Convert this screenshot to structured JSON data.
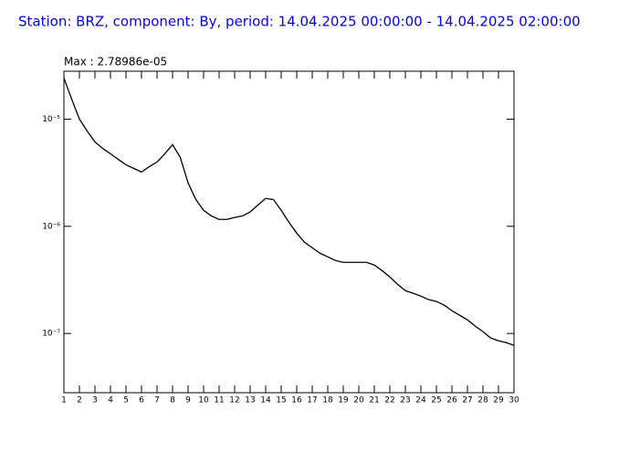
{
  "chart_data": {
    "type": "line",
    "title": "Station: BRZ, component: By, period: 14.04.2025 00:00:00 - 14.04.2025 02:00:00",
    "annotation": "Max : 2.78986e-05",
    "x": [
      1,
      1.5,
      2,
      2.5,
      3,
      3.5,
      4,
      4.5,
      5,
      5.5,
      6,
      6.5,
      7,
      7.5,
      8,
      8.5,
      9,
      9.5,
      10,
      10.5,
      11,
      11.5,
      12,
      12.5,
      13,
      13.5,
      14,
      14.5,
      15,
      15.5,
      16,
      16.5,
      17,
      17.5,
      18,
      18.5,
      19,
      19.5,
      20,
      20.5,
      21,
      21.5,
      22,
      22.5,
      23,
      23.5,
      24,
      24.5,
      25,
      25.5,
      26,
      26.5,
      27,
      27.5,
      28,
      28.5,
      29,
      29.5,
      30
    ],
    "series": [
      {
        "color": "#000000",
        "values": [
          2.42e-05,
          1.54e-05,
          1e-05,
          7.75e-06,
          6.13e-06,
          5.34e-06,
          4.75e-06,
          4.22e-06,
          3.75e-06,
          3.47e-06,
          3.21e-06,
          3.61e-06,
          3.98e-06,
          4.75e-06,
          5.78e-06,
          4.39e-06,
          2.54e-06,
          1.78e-06,
          1.41e-06,
          1.25e-06,
          1.16e-06,
          1.16e-06,
          1.21e-06,
          1.25e-06,
          1.36e-06,
          1.58e-06,
          1.82e-06,
          1.78e-06,
          1.41e-06,
          1.09e-06,
          8.63e-07,
          7.1e-07,
          6.31e-07,
          5.61e-07,
          5.19e-07,
          4.8e-07,
          4.61e-07,
          4.61e-07,
          4.61e-07,
          4.61e-07,
          4.35e-07,
          3.86e-07,
          3.37e-07,
          2.88e-07,
          2.51e-07,
          2.37e-07,
          2.23e-07,
          2.07e-07,
          1.99e-07,
          1.84e-07,
          1.63e-07,
          1.48e-07,
          1.34e-07,
          1.17e-07,
          1.04e-07,
          9.06e-08,
          8.55e-08,
          8.22e-08,
          7.75e-08
        ]
      }
    ],
    "xlim": [
      1,
      30
    ],
    "xticks": [
      1,
      2,
      3,
      4,
      5,
      6,
      7,
      8,
      9,
      10,
      11,
      12,
      13,
      14,
      15,
      16,
      17,
      18,
      19,
      20,
      21,
      22,
      23,
      24,
      25,
      26,
      27,
      28,
      29,
      30
    ],
    "ylim": [
      2.8e-08,
      2.8e-05
    ],
    "log_y": true,
    "yticks": [
      {
        "value": 1e-05,
        "label": "10⁻⁵"
      },
      {
        "value": 1e-06,
        "label": "10⁻⁶"
      },
      {
        "value": 1e-07,
        "label": "10⁻⁷"
      }
    ]
  }
}
